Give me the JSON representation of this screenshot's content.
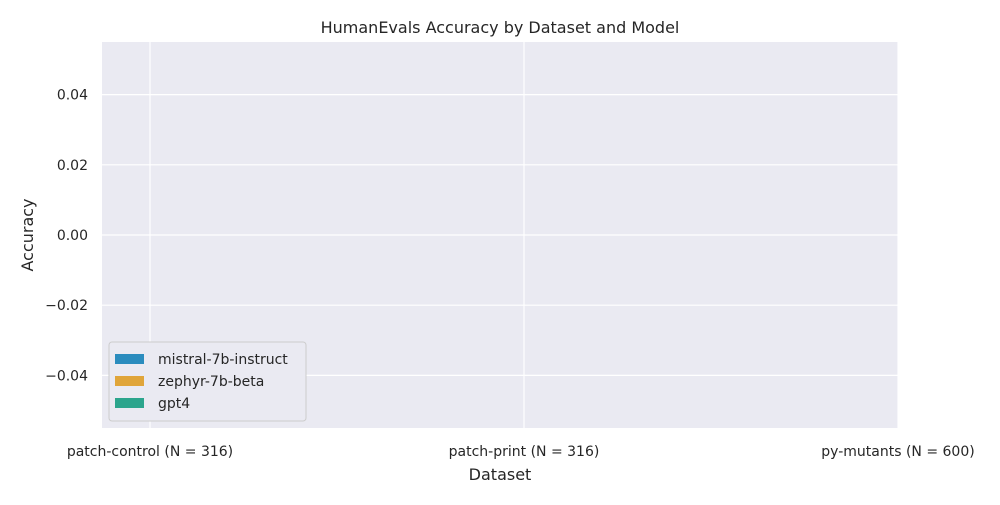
{
  "chart_data": {
    "type": "bar",
    "title": "HumanEvals Accuracy by Dataset and Model",
    "xlabel": "Dataset",
    "ylabel": "Accuracy",
    "categories": [
      "patch-control (N = 316)",
      "patch-print (N = 316)",
      "py-mutants (N = 600)"
    ],
    "series": [
      {
        "name": "mistral-7b-instruct",
        "color": "#2b8cbe",
        "values": [
          null,
          null,
          null
        ]
      },
      {
        "name": "zephyr-7b-beta",
        "color": "#e0a53a",
        "values": [
          null,
          null,
          null
        ]
      },
      {
        "name": "gpt4",
        "color": "#2ca58d",
        "values": [
          null,
          null,
          null
        ]
      }
    ],
    "ylim": [
      -0.055,
      0.055
    ],
    "yticks": [
      -0.04,
      -0.02,
      0.0,
      0.02,
      0.04
    ],
    "ytick_labels": [
      "−0.04",
      "−0.02",
      "0.00",
      "0.02",
      "0.04"
    ],
    "grid": true,
    "legend_position": "lower-left",
    "background": "#eaeaf2"
  }
}
